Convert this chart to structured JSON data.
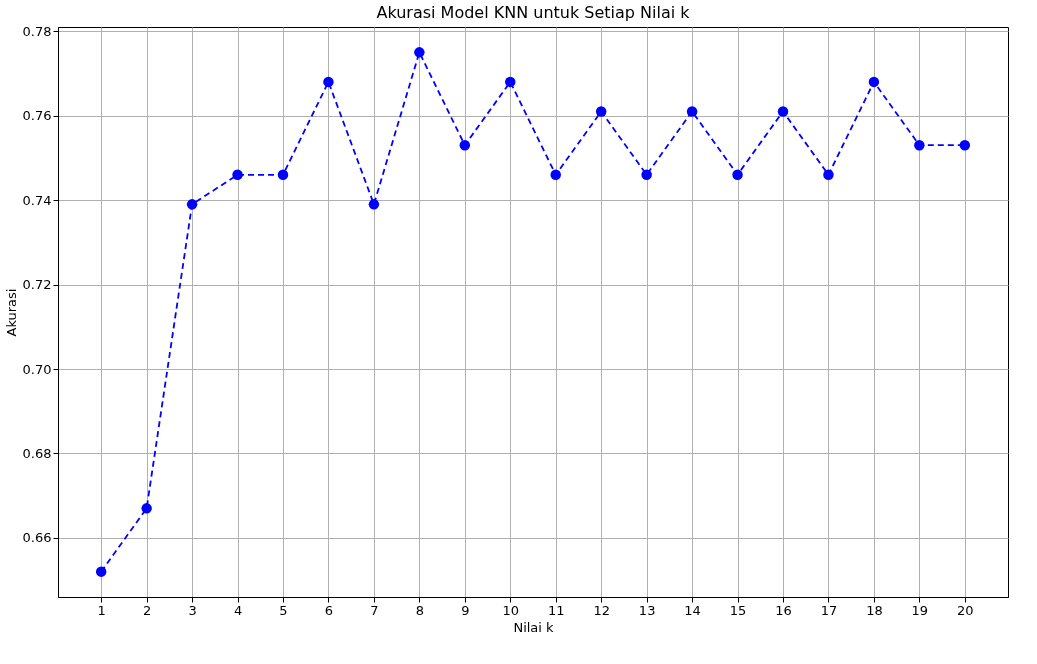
{
  "chart_data": {
    "type": "line",
    "title": "Akurasi Model KNN untuk Setiap Nilai k",
    "xlabel": "Nilai k",
    "ylabel": "Akurasi",
    "x": [
      1,
      2,
      3,
      4,
      5,
      6,
      7,
      8,
      9,
      10,
      11,
      12,
      13,
      14,
      15,
      16,
      17,
      18,
      19,
      20
    ],
    "series": [
      {
        "color": "#0000ff",
        "values": [
          0.652,
          0.667,
          0.739,
          0.746,
          0.746,
          0.768,
          0.739,
          0.775,
          0.753,
          0.768,
          0.746,
          0.761,
          0.746,
          0.761,
          0.746,
          0.761,
          0.746,
          0.768,
          0.753,
          0.753
        ]
      }
    ],
    "xlim": [
      0.05,
      20.95
    ],
    "ylim": [
      0.646,
      0.781
    ],
    "xticks": [
      1,
      2,
      3,
      4,
      5,
      6,
      7,
      8,
      9,
      10,
      11,
      12,
      13,
      14,
      15,
      16,
      17,
      18,
      19,
      20
    ],
    "yticks": [
      0.66,
      0.68,
      {
        "value": 0.7,
        "label": "0.70"
      },
      0.72,
      0.74,
      0.76,
      0.78
    ],
    "grid": true,
    "marker": "circle",
    "line_style": "dashed"
  }
}
